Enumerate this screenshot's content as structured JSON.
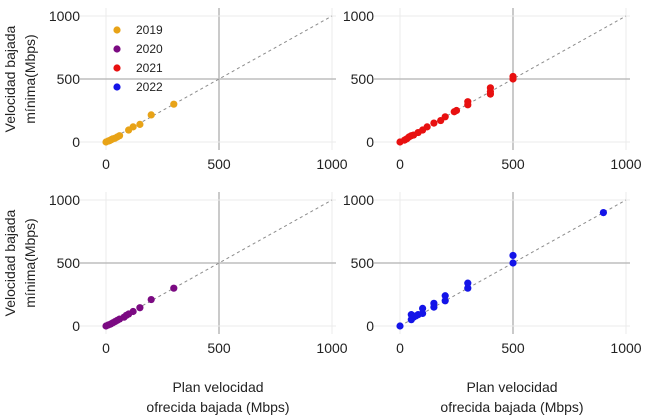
{
  "chart_data": {
    "type": "scatter",
    "layout": "2x2 facet grid",
    "xlabel": [
      "Plan velocidad",
      "ofrecida bajada (Mbps)"
    ],
    "ylabel": [
      "Velocidad bajada",
      "mínima(Mbps)"
    ],
    "xlim": [
      0,
      1000
    ],
    "ylim": [
      0,
      1000
    ],
    "x_ticks": [
      0,
      500,
      1000
    ],
    "y_ticks": [
      0,
      500,
      1000
    ],
    "reference_line": "y = x (dashed)",
    "legend": {
      "placement": "top-left of first panel",
      "entries": [
        {
          "label": "2019",
          "color": "#E8A317"
        },
        {
          "label": "2020",
          "color": "#7B0A82"
        },
        {
          "label": "2021",
          "color": "#E81010"
        },
        {
          "label": "2022",
          "color": "#1414E8"
        }
      ]
    },
    "panels": [
      {
        "series": "2019",
        "color": "#E8A317",
        "x": [
          0,
          10,
          15,
          20,
          25,
          30,
          40,
          50,
          60,
          100,
          120,
          150,
          200,
          300
        ],
        "y": [
          0,
          8,
          10,
          15,
          20,
          25,
          30,
          40,
          50,
          95,
          120,
          140,
          215,
          300
        ]
      },
      {
        "series": "2021",
        "color": "#E81010",
        "x": [
          0,
          20,
          30,
          40,
          50,
          60,
          80,
          100,
          120,
          150,
          180,
          200,
          240,
          250,
          300,
          300,
          400,
          400,
          400,
          500,
          500
        ],
        "y": [
          0,
          15,
          25,
          40,
          50,
          55,
          75,
          95,
          120,
          150,
          170,
          200,
          240,
          250,
          295,
          320,
          380,
          400,
          430,
          500,
          520
        ]
      },
      {
        "series": "2020",
        "color": "#7B0A82",
        "x": [
          0,
          10,
          20,
          30,
          40,
          50,
          60,
          80,
          90,
          100,
          120,
          150,
          200,
          300
        ],
        "y": [
          0,
          8,
          15,
          25,
          35,
          45,
          55,
          70,
          85,
          95,
          115,
          145,
          210,
          300
        ]
      },
      {
        "series": "2022",
        "color": "#1414E8",
        "x": [
          0,
          50,
          50,
          60,
          70,
          80,
          100,
          100,
          150,
          150,
          200,
          200,
          300,
          300,
          500,
          500,
          900
        ],
        "y": [
          0,
          50,
          90,
          70,
          80,
          90,
          100,
          140,
          150,
          180,
          200,
          240,
          300,
          340,
          500,
          560,
          900
        ]
      }
    ]
  }
}
